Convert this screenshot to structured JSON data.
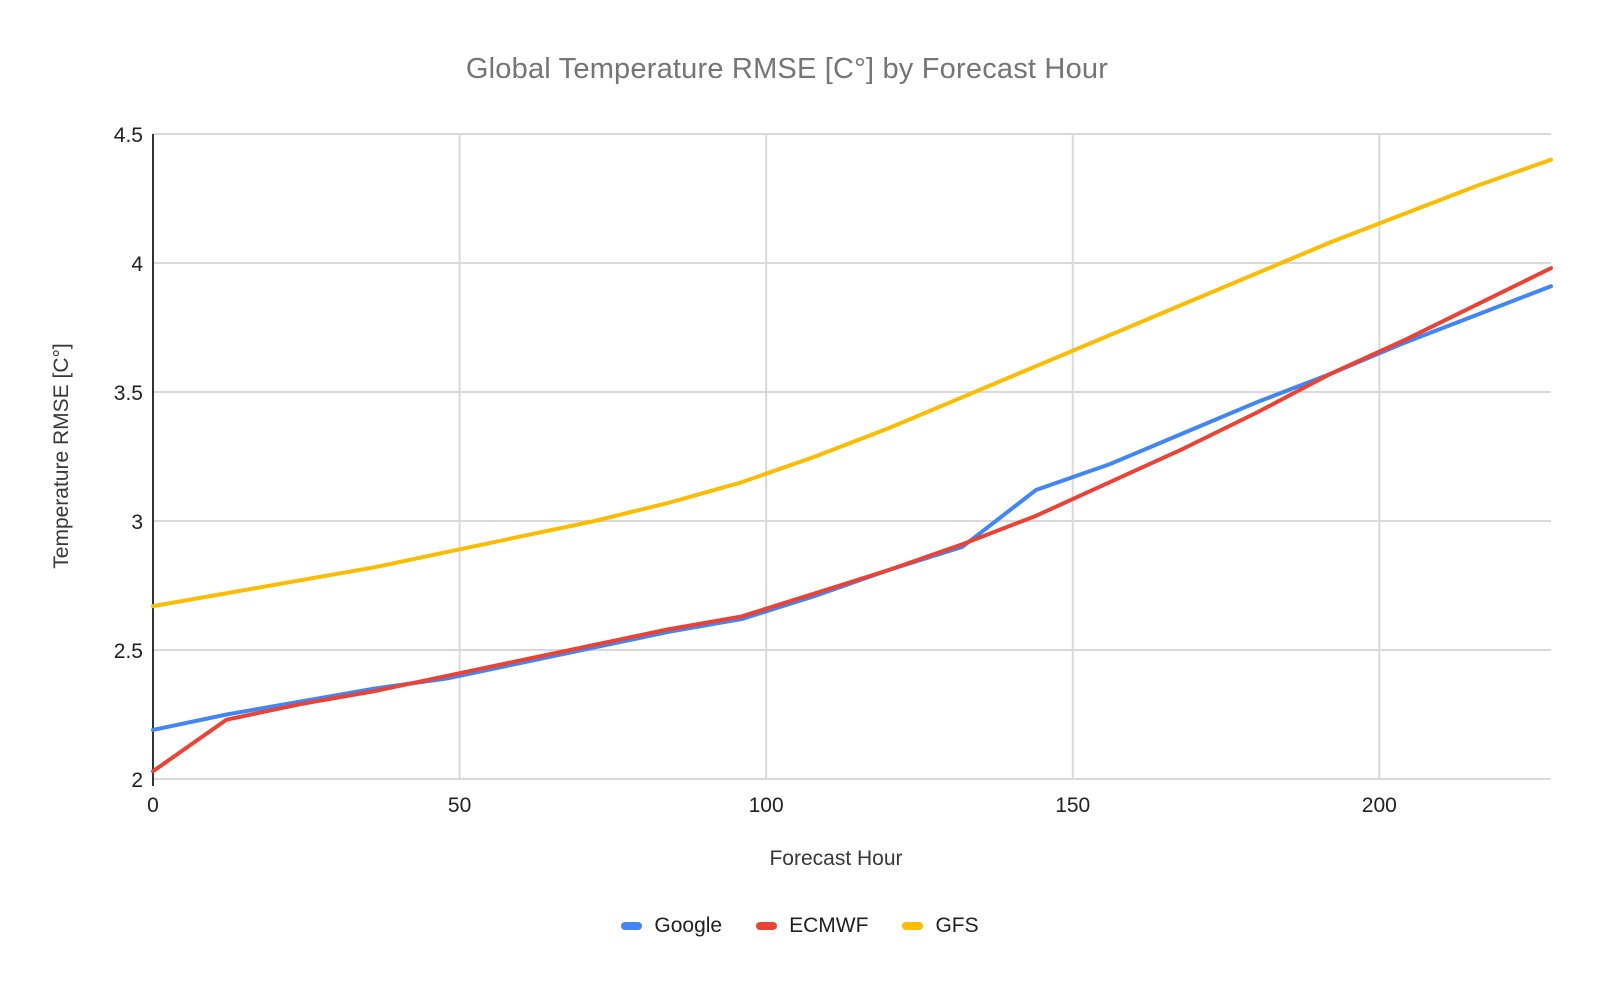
{
  "title": "Global Temperature RMSE [C°] by Forecast Hour",
  "chart_data": {
    "type": "line",
    "title": "Global Temperature RMSE [C°] by Forecast Hour",
    "xlabel": "Forecast Hour",
    "ylabel": "Temperature RMSE [C°]",
    "xlim": [
      0,
      228
    ],
    "ylim": [
      2,
      4.5
    ],
    "xticks": [
      0,
      50,
      100,
      150,
      200
    ],
    "yticks": [
      2,
      2.5,
      3,
      3.5,
      4,
      4.5
    ],
    "grid": true,
    "legend_position": "bottom",
    "background_color": "#ffffff",
    "gridline_color": "#d9d9d9",
    "axis_line_color": "#333333",
    "x": [
      0,
      12,
      24,
      36,
      48,
      60,
      72,
      84,
      96,
      108,
      120,
      132,
      144,
      156,
      168,
      180,
      192,
      204,
      216,
      228
    ],
    "series": [
      {
        "name": "Google",
        "color": "#4285F4",
        "values": [
          2.19,
          2.25,
          2.3,
          2.35,
          2.39,
          2.45,
          2.51,
          2.57,
          2.62,
          2.71,
          2.81,
          2.9,
          3.12,
          3.22,
          3.34,
          3.46,
          3.57,
          3.69,
          3.8,
          3.91
        ]
      },
      {
        "name": "ECMWF",
        "color": "#EA4335",
        "values": [
          2.03,
          2.23,
          2.29,
          2.34,
          2.4,
          2.46,
          2.52,
          2.58,
          2.63,
          2.72,
          2.81,
          2.91,
          3.02,
          3.15,
          3.28,
          3.42,
          3.57,
          3.7,
          3.84,
          3.98
        ]
      },
      {
        "name": "GFS",
        "color": "#FBBC04",
        "values": [
          2.67,
          2.72,
          2.77,
          2.82,
          2.88,
          2.94,
          3.0,
          3.07,
          3.15,
          3.25,
          3.36,
          3.48,
          3.6,
          3.72,
          3.84,
          3.96,
          4.08,
          4.19,
          4.3,
          4.4
        ]
      }
    ]
  }
}
